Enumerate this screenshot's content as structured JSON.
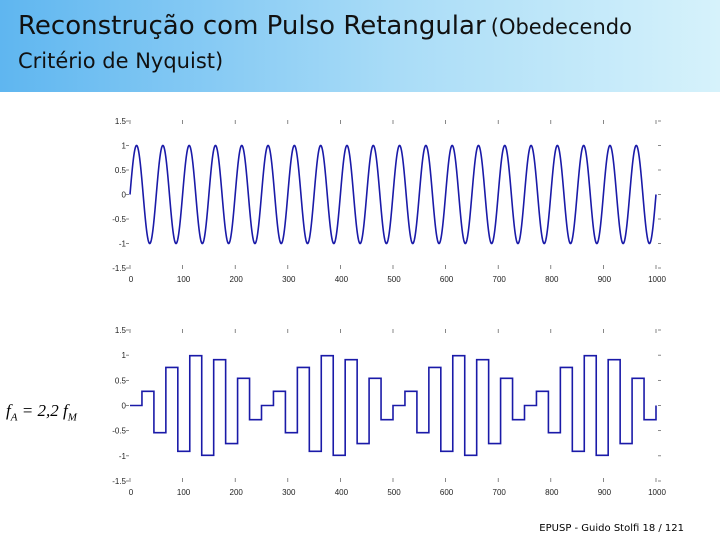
{
  "slide": {
    "title_main": "Reconstrução com Pulso Retangular",
    "title_paren": "(Obedecendo",
    "title_line2": "Critério de Nyquist)",
    "footer": "EPUSP - Guido Stolfi   18 / 121"
  },
  "label": {
    "fa": "f",
    "fa_sub": "A",
    "eq": " = 2,2 ",
    "fm": "f",
    "fm_sub": "M"
  },
  "colors": {
    "signal": "#1a1aa8",
    "header_left": "#5fb6f0",
    "header_right": "#d6f2fb"
  },
  "chart_data": [
    {
      "type": "line",
      "title": "",
      "xlabel": "",
      "ylabel": "",
      "xlim": [
        0,
        1000
      ],
      "ylim": [
        -1.5,
        1.5
      ],
      "x_ticks": [
        "0",
        "100",
        "200",
        "300",
        "400",
        "500",
        "600",
        "700",
        "800",
        "900",
        "1000"
      ],
      "y_ticks": [
        "1.5",
        "1",
        "0.5",
        "0",
        "-0.5",
        "-1",
        "-1.5"
      ],
      "series": [
        {
          "name": "",
          "function": "sin",
          "amplitude": 1,
          "cycles": 20,
          "x_start": 0,
          "x_end": 1000
        }
      ]
    },
    {
      "type": "line",
      "title": "",
      "xlabel": "",
      "ylabel": "",
      "xlim": [
        0,
        1000
      ],
      "ylim": [
        -1.5,
        1.5
      ],
      "x_ticks": [
        "0",
        "100",
        "200",
        "300",
        "400",
        "500",
        "600",
        "700",
        "800",
        "900",
        "1000"
      ],
      "y_ticks": [
        "1.5",
        "1",
        "0.5",
        "0",
        "-0.5",
        "-1",
        "-1.5"
      ],
      "series": [
        {
          "name": "",
          "style": "step",
          "amplitude": 1,
          "cycles": 20,
          "samples_per_cycle": 2.2,
          "x_start": 0,
          "x_end": 1000
        }
      ]
    }
  ]
}
